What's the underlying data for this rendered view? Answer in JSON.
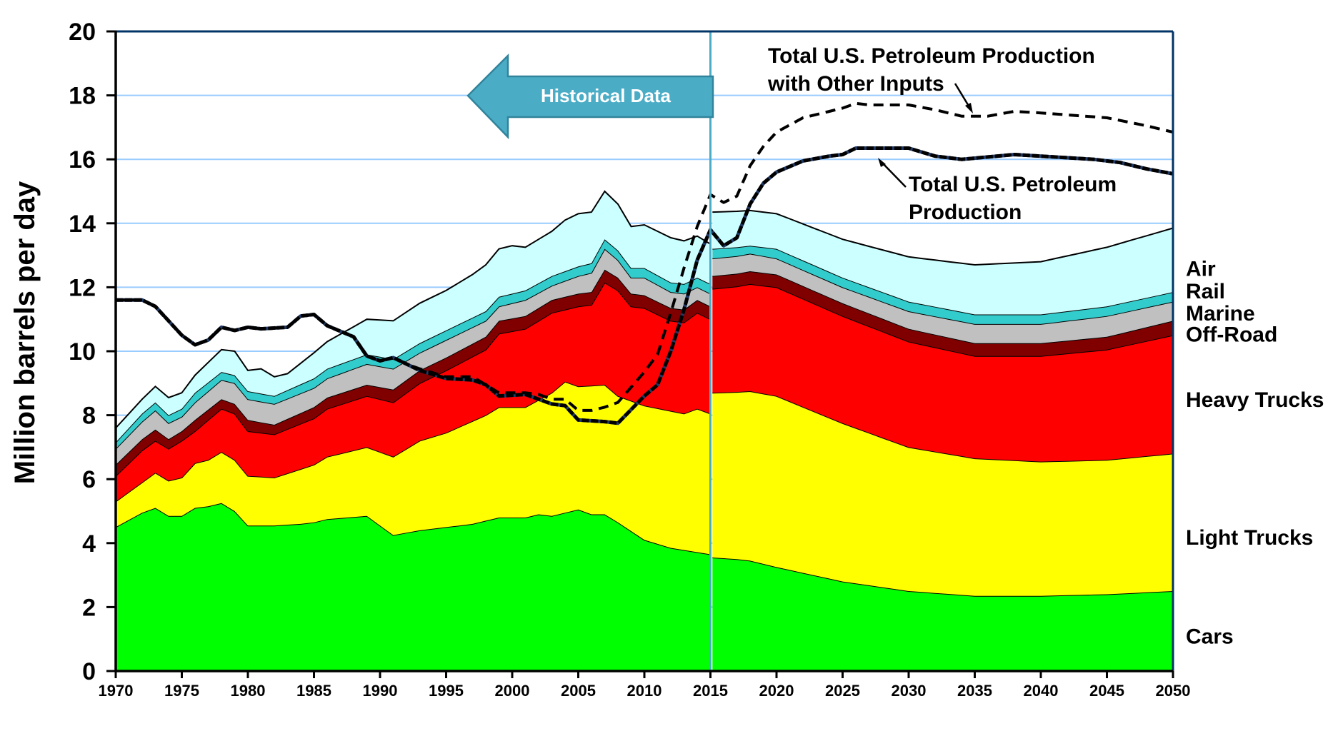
{
  "chart_data": {
    "type": "area",
    "stacked": true,
    "title": "",
    "xlabel": "",
    "ylabel": "Million barrels per day",
    "xlim": [
      1970,
      2050
    ],
    "ylim": [
      0,
      20
    ],
    "grid": true,
    "x_ticks": [
      1970,
      1975,
      1980,
      1985,
      1990,
      1995,
      2000,
      2005,
      2010,
      2015,
      2020,
      2025,
      2030,
      2035,
      2040,
      2045,
      2050
    ],
    "y_ticks": [
      0,
      2,
      4,
      6,
      8,
      10,
      12,
      14,
      16,
      18,
      20
    ],
    "divider_year": 2015,
    "legend_placement": "right",
    "annotations": {
      "historical": "Historical Data",
      "production_with_other_line1": "Total U.S. Petroleum Production",
      "production_with_other_line2": "with Other Inputs",
      "production_line1": "Total U.S. Petroleum",
      "production_line2": "Production"
    },
    "stack_series": [
      {
        "name": "Cars",
        "color": "#00FF00",
        "cumulative_top": {
          "x": [
            1970,
            1972,
            1973,
            1974,
            1975,
            1976,
            1977,
            1978,
            1979,
            1980,
            1982,
            1984,
            1985,
            1986,
            1989,
            1991,
            1993,
            1995,
            1997,
            1999,
            2001,
            2002,
            2003,
            2005,
            2006,
            2007,
            2008,
            2010,
            2012,
            2015,
            2016,
            2018,
            2020,
            2025,
            2030,
            2035,
            2040,
            2045,
            2050
          ],
          "y": [
            4.5,
            4.95,
            5.1,
            4.85,
            4.85,
            5.1,
            5.15,
            5.25,
            5.0,
            4.55,
            4.55,
            4.6,
            4.65,
            4.75,
            4.85,
            4.25,
            4.4,
            4.5,
            4.6,
            4.8,
            4.8,
            4.9,
            4.85,
            5.05,
            4.9,
            4.9,
            4.65,
            4.1,
            3.85,
            3.65,
            3.55,
            3.45,
            3.25,
            2.8,
            2.5,
            2.35,
            2.35,
            2.4,
            2.5
          ]
        }
      },
      {
        "name": "Light Trucks",
        "color": "#FFFF00",
        "cumulative_top": {
          "x": [
            1970,
            1972,
            1973,
            1974,
            1975,
            1976,
            1977,
            1978,
            1979,
            1980,
            1982,
            1985,
            1986,
            1989,
            1991,
            1993,
            1995,
            1998,
            1999,
            2001,
            2003,
            2004,
            2005,
            2007,
            2008,
            2010,
            2013,
            2014,
            2015,
            2016,
            2018,
            2020,
            2025,
            2030,
            2035,
            2040,
            2045,
            2050
          ],
          "y": [
            5.3,
            5.9,
            6.2,
            5.95,
            6.05,
            6.5,
            6.6,
            6.85,
            6.6,
            6.1,
            6.05,
            6.45,
            6.7,
            7.0,
            6.7,
            7.2,
            7.45,
            8.0,
            8.25,
            8.25,
            8.7,
            9.05,
            8.9,
            8.95,
            8.6,
            8.3,
            8.05,
            8.2,
            8.05,
            8.7,
            8.75,
            8.6,
            7.75,
            7.0,
            6.65,
            6.55,
            6.6,
            6.8
          ]
        }
      },
      {
        "name": "Heavy Trucks",
        "color": "#FF0000",
        "cumulative_top": {
          "x": [
            1970,
            1972,
            1973,
            1974,
            1975,
            1976,
            1978,
            1979,
            1980,
            1982,
            1985,
            1986,
            1989,
            1991,
            1993,
            1995,
            1998,
            1999,
            2001,
            2003,
            2005,
            2006,
            2007,
            2008,
            2009,
            2010,
            2012,
            2013,
            2014,
            2015,
            2016,
            2018,
            2020,
            2025,
            2030,
            2035,
            2040,
            2045,
            2050
          ],
          "y": [
            6.1,
            6.9,
            7.2,
            6.95,
            7.2,
            7.5,
            8.2,
            8.05,
            7.5,
            7.4,
            7.9,
            8.2,
            8.6,
            8.4,
            9.0,
            9.4,
            10.05,
            10.55,
            10.7,
            11.2,
            11.4,
            11.45,
            12.15,
            11.9,
            11.4,
            11.35,
            10.95,
            10.9,
            11.2,
            11.0,
            11.95,
            12.1,
            12.0,
            11.1,
            10.3,
            9.85,
            9.85,
            10.05,
            10.5
          ]
        }
      },
      {
        "name": "Off-Road",
        "color": "#800000",
        "cumulative_top": {
          "x": [
            1970,
            1972,
            1973,
            1974,
            1975,
            1976,
            1978,
            1979,
            1980,
            1982,
            1985,
            1986,
            1989,
            1991,
            1993,
            1995,
            1998,
            1999,
            2001,
            2003,
            2005,
            2006,
            2007,
            2008,
            2009,
            2010,
            2012,
            2013,
            2014,
            2015,
            2016,
            2018,
            2020,
            2025,
            2030,
            2035,
            2040,
            2045,
            2050
          ],
          "y": [
            6.45,
            7.25,
            7.55,
            7.25,
            7.5,
            7.85,
            8.5,
            8.35,
            7.85,
            7.7,
            8.25,
            8.55,
            8.95,
            8.8,
            9.4,
            9.8,
            10.45,
            10.95,
            11.1,
            11.6,
            11.8,
            11.85,
            12.55,
            12.3,
            11.8,
            11.75,
            11.35,
            11.3,
            11.6,
            11.4,
            12.35,
            12.5,
            12.4,
            11.5,
            10.7,
            10.25,
            10.25,
            10.45,
            10.95
          ]
        }
      },
      {
        "name": "Marine",
        "color": "#C0C0C0",
        "cumulative_top": {
          "x": [
            1970,
            1972,
            1973,
            1974,
            1975,
            1976,
            1978,
            1979,
            1980,
            1982,
            1985,
            1986,
            1989,
            1991,
            1993,
            1995,
            1998,
            1999,
            2001,
            2003,
            2005,
            2006,
            2007,
            2008,
            2009,
            2010,
            2012,
            2013,
            2014,
            2015,
            2016,
            2018,
            2020,
            2025,
            2030,
            2035,
            2040,
            2045,
            2050
          ],
          "y": [
            6.95,
            7.8,
            8.15,
            7.75,
            7.95,
            8.4,
            9.1,
            9.0,
            8.5,
            8.35,
            8.85,
            9.15,
            9.6,
            9.45,
            9.95,
            10.35,
            10.95,
            11.4,
            11.6,
            12.05,
            12.35,
            12.45,
            13.2,
            12.85,
            12.3,
            12.3,
            11.85,
            11.8,
            12.0,
            11.8,
            12.9,
            13.05,
            12.9,
            12.0,
            11.25,
            10.85,
            10.85,
            11.1,
            11.55
          ]
        }
      },
      {
        "name": "Rail",
        "color": "#33CCCC",
        "cumulative_top": {
          "x": [
            1970,
            1972,
            1973,
            1974,
            1975,
            1976,
            1978,
            1979,
            1980,
            1982,
            1985,
            1986,
            1989,
            1991,
            1993,
            1995,
            1998,
            1999,
            2001,
            2003,
            2005,
            2006,
            2007,
            2008,
            2009,
            2010,
            2012,
            2013,
            2014,
            2015,
            2016,
            2018,
            2020,
            2025,
            2030,
            2035,
            2040,
            2045,
            2050
          ],
          "y": [
            7.15,
            8.05,
            8.4,
            8.0,
            8.2,
            8.7,
            9.35,
            9.25,
            8.75,
            8.6,
            9.15,
            9.45,
            9.9,
            9.75,
            10.25,
            10.65,
            11.25,
            11.7,
            11.9,
            12.35,
            12.65,
            12.75,
            13.5,
            13.15,
            12.6,
            12.6,
            12.15,
            12.1,
            12.3,
            12.1,
            13.2,
            13.3,
            13.2,
            12.3,
            11.55,
            11.15,
            11.15,
            11.4,
            11.85
          ]
        }
      },
      {
        "name": "Air",
        "color": "#CCFFFF",
        "cumulative_top": {
          "x": [
            1970,
            1972,
            1973,
            1974,
            1975,
            1976,
            1978,
            1979,
            1980,
            1981,
            1982,
            1983,
            1985,
            1986,
            1989,
            1991,
            1993,
            1995,
            1997,
            1998,
            1999,
            2000,
            2001,
            2003,
            2004,
            2005,
            2006,
            2007,
            2008,
            2009,
            2010,
            2012,
            2013,
            2014,
            2015,
            2016,
            2018,
            2020,
            2025,
            2030,
            2035,
            2040,
            2045,
            2050
          ],
          "y": [
            7.6,
            8.5,
            8.9,
            8.55,
            8.7,
            9.25,
            10.05,
            10.0,
            9.4,
            9.45,
            9.2,
            9.3,
            9.95,
            10.3,
            11.0,
            10.95,
            11.5,
            11.9,
            12.4,
            12.7,
            13.2,
            13.3,
            13.25,
            13.75,
            14.1,
            14.3,
            14.35,
            15.0,
            14.6,
            13.9,
            13.95,
            13.55,
            13.45,
            13.6,
            13.35,
            14.35,
            14.4,
            14.3,
            13.5,
            12.95,
            12.7,
            12.8,
            13.25,
            13.85
          ]
        }
      }
    ],
    "line_series": [
      {
        "name": "Total U.S. Petroleum Production",
        "style": "solid",
        "x": [
          1970,
          1972,
          1973,
          1975,
          1976,
          1977,
          1978,
          1979,
          1980,
          1981,
          1983,
          1984,
          1985,
          1986,
          1988,
          1989,
          1990,
          1991,
          1992,
          1993,
          1995,
          1997,
          1998,
          1999,
          2001,
          2003,
          2004,
          2005,
          2007,
          2008,
          2010,
          2011,
          2012,
          2013,
          2014,
          2015,
          2016,
          2017,
          2018,
          2019,
          2020,
          2022,
          2024,
          2025,
          2026,
          2030,
          2032,
          2034,
          2038,
          2040,
          2044,
          2046,
          2048,
          2050
        ],
        "y": [
          11.6,
          11.6,
          11.4,
          10.5,
          10.2,
          10.35,
          10.75,
          10.65,
          10.75,
          10.7,
          10.75,
          11.1,
          11.15,
          10.8,
          10.45,
          9.85,
          9.7,
          9.8,
          9.6,
          9.4,
          9.15,
          9.1,
          8.95,
          8.6,
          8.65,
          8.35,
          8.3,
          7.85,
          7.8,
          7.75,
          8.6,
          8.95,
          10.0,
          11.3,
          12.85,
          13.8,
          13.3,
          13.55,
          14.6,
          15.25,
          15.6,
          15.95,
          16.1,
          16.15,
          16.35,
          16.35,
          16.1,
          16.0,
          16.15,
          16.1,
          16.0,
          15.9,
          15.7,
          15.55
        ]
      },
      {
        "name": "Total U.S. Petroleum Production with Other Inputs",
        "style": "dashed",
        "x": [
          1970,
          1972,
          1973,
          1975,
          1976,
          1977,
          1978,
          1979,
          1980,
          1981,
          1983,
          1984,
          1985,
          1986,
          1988,
          1989,
          1990,
          1991,
          1992,
          1993,
          1995,
          1997,
          1998,
          1999,
          2001,
          2002,
          2003,
          2004,
          2005,
          2006,
          2007,
          2008,
          2010,
          2011,
          2012,
          2013,
          2014,
          2015,
          2016,
          2017,
          2018,
          2019,
          2020,
          2022,
          2024,
          2025,
          2026,
          2027,
          2030,
          2032,
          2034,
          2036,
          2038,
          2040,
          2045,
          2048,
          2050
        ],
        "y": [
          11.6,
          11.6,
          11.4,
          10.5,
          10.2,
          10.35,
          10.75,
          10.65,
          10.75,
          10.7,
          10.75,
          11.1,
          11.15,
          10.8,
          10.45,
          9.85,
          9.7,
          9.8,
          9.6,
          9.45,
          9.2,
          9.2,
          8.95,
          8.7,
          8.7,
          8.65,
          8.5,
          8.5,
          8.15,
          8.15,
          8.25,
          8.4,
          9.35,
          9.9,
          11.2,
          12.6,
          13.9,
          14.9,
          14.65,
          14.85,
          15.8,
          16.4,
          16.85,
          17.3,
          17.5,
          17.6,
          17.75,
          17.7,
          17.7,
          17.55,
          17.35,
          17.35,
          17.5,
          17.45,
          17.3,
          17.05,
          16.85
        ]
      }
    ],
    "colors": {
      "grid": "#99CCFF",
      "frame": "#003366",
      "divider": "#4BACC6",
      "arrow_fill": "#4BACC6",
      "arrow_border": "#31849B",
      "production_line_under": "#1F3864"
    }
  }
}
